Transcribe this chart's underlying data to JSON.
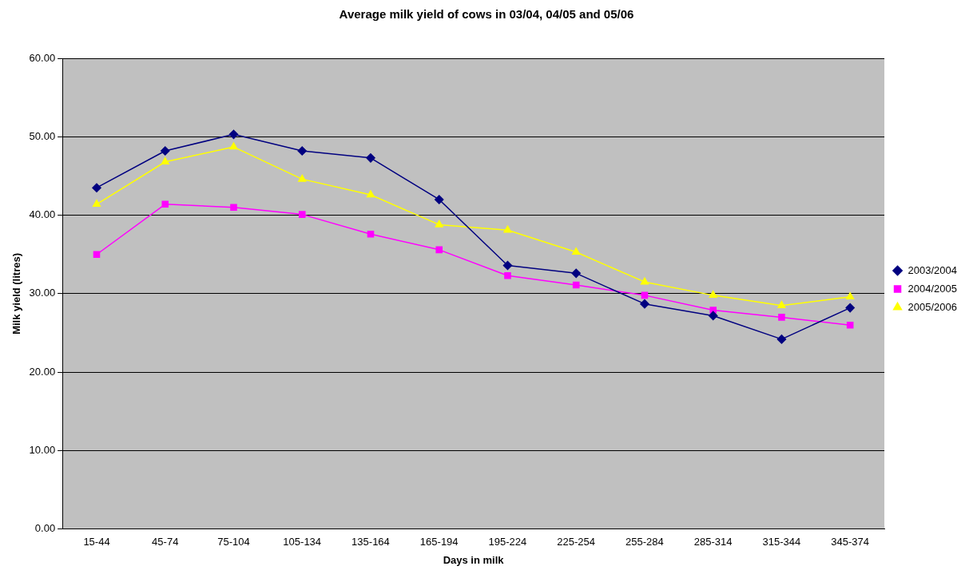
{
  "chart_data": {
    "type": "line",
    "title": "Average milk yield of cows in 03/04, 04/05 and 05/06",
    "xlabel": "Days in milk",
    "ylabel": "Milk yield (litres)",
    "categories": [
      "15-44",
      "45-74",
      "75-104",
      "105-134",
      "135-164",
      "165-194",
      "195-224",
      "225-254",
      "255-284",
      "285-314",
      "315-344",
      "345-374"
    ],
    "series": [
      {
        "name": "2003/2004",
        "color": "#000080",
        "marker": "diamond",
        "values": [
          43.5,
          48.2,
          50.3,
          48.2,
          47.3,
          42.0,
          33.6,
          32.6,
          28.7,
          27.2,
          24.2,
          28.2
        ]
      },
      {
        "name": "2004/2005",
        "color": "#ff00ff",
        "marker": "square",
        "values": [
          35.0,
          41.4,
          41.0,
          40.1,
          37.6,
          35.6,
          32.3,
          31.1,
          29.8,
          27.9,
          27.0,
          26.0
        ]
      },
      {
        "name": "2005/2006",
        "color": "#ffff00",
        "marker": "triangle",
        "values": [
          41.4,
          46.8,
          48.7,
          44.6,
          42.6,
          38.8,
          38.1,
          35.3,
          31.5,
          29.8,
          28.5,
          29.6
        ]
      }
    ],
    "ylim": [
      0,
      60
    ],
    "yticks": [
      {
        "value": 0,
        "label": "0.00"
      },
      {
        "value": 10,
        "label": "10.00"
      },
      {
        "value": 20,
        "label": "20.00"
      },
      {
        "value": 30,
        "label": "30.00"
      },
      {
        "value": 40,
        "label": "40.00"
      },
      {
        "value": 50,
        "label": "50.00"
      },
      {
        "value": 60,
        "label": "60.00"
      }
    ],
    "grid": "y",
    "legend": "right"
  }
}
